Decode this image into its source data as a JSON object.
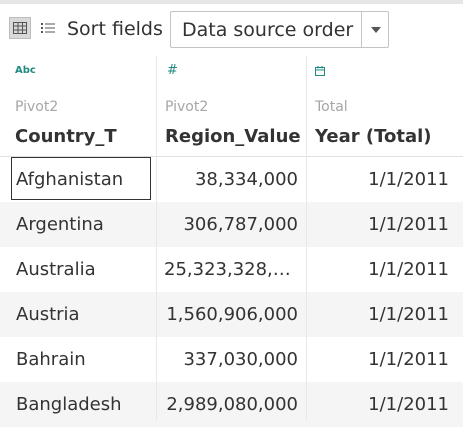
{
  "toolbar": {
    "sort_label": "Sort fields",
    "sort_value": "Data source order",
    "grid_icon": "grid-view-icon",
    "list_icon": "list-view-icon"
  },
  "columns": [
    {
      "type_icon": "Abc",
      "source": "Pivot2",
      "name": "Country_T"
    },
    {
      "type_icon": "#",
      "source": "Pivot2",
      "name": "Region_Value"
    },
    {
      "type_icon": "calendar-icon",
      "source": "Total",
      "name": "Year (Total)"
    }
  ],
  "rows": [
    {
      "country": "Afghanistan",
      "value": "38,334,000",
      "year": "1/1/2011"
    },
    {
      "country": "Argentina",
      "value": "306,787,000",
      "year": "1/1/2011"
    },
    {
      "country": "Australia",
      "value": "25,323,328,0...",
      "year": "1/1/2011"
    },
    {
      "country": "Austria",
      "value": "1,560,906,000",
      "year": "1/1/2011"
    },
    {
      "country": "Bahrain",
      "value": "337,030,000",
      "year": "1/1/2011"
    },
    {
      "country": "Bangladesh",
      "value": "2,989,080,000",
      "year": "1/1/2011"
    }
  ],
  "colors": {
    "accent": "#1f8a80",
    "alt_row": "#f5f5f5"
  }
}
